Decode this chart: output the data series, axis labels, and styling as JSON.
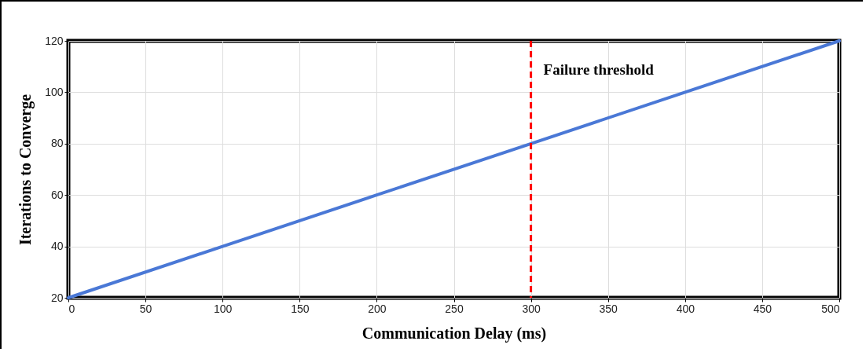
{
  "chart_data": {
    "type": "line",
    "xlabel": "Communication Delay (ms)",
    "ylabel": "Iterations to Converge",
    "x": [
      0,
      100,
      200,
      300,
      400,
      500
    ],
    "series": [
      {
        "color": "#4a78d6",
        "values": [
          20,
          40,
          60,
          80,
          100,
          120
        ]
      }
    ],
    "xlim": [
      0,
      500
    ],
    "xticks": [
      0,
      50,
      100,
      150,
      200,
      250,
      300,
      350,
      400,
      450,
      500
    ],
    "ylim": [
      20,
      120
    ],
    "yticks": [
      20,
      40,
      60,
      80,
      100,
      120
    ],
    "grid": true,
    "marker": "none",
    "line_style": "solid",
    "ref_lines": [
      {
        "axis": "x",
        "value": 300,
        "label": "Failure threshold",
        "color": "#ff0000",
        "line_style": "dashed"
      }
    ]
  }
}
